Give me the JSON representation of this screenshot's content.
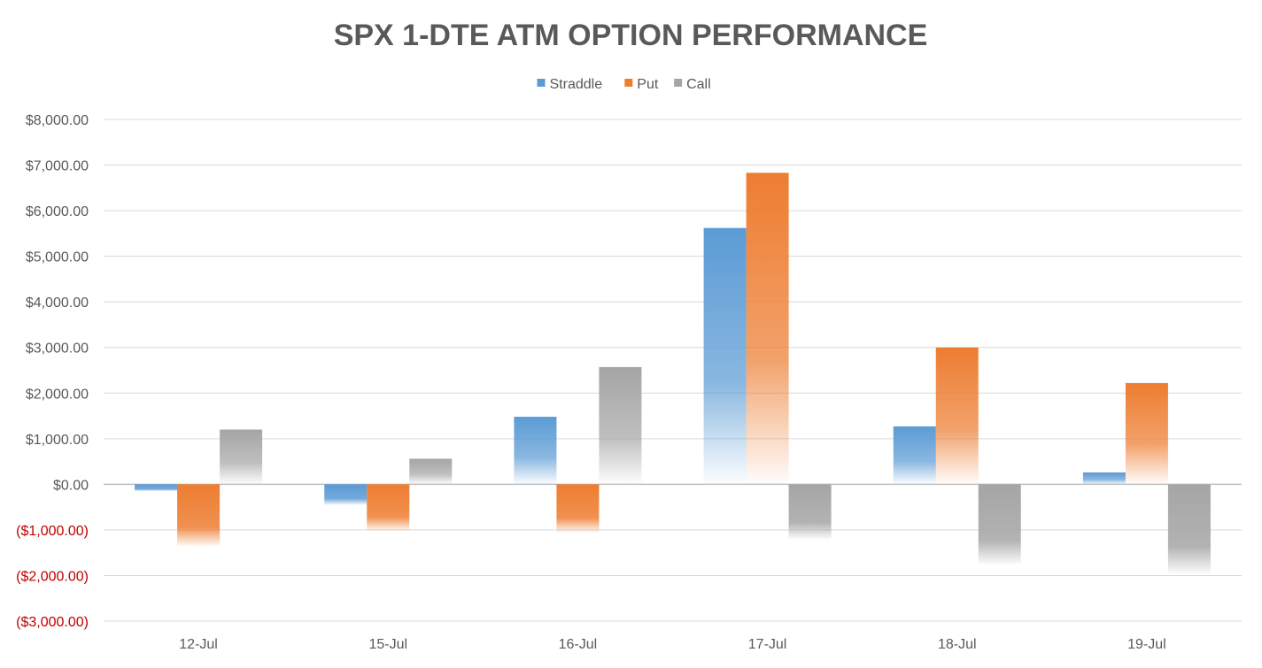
{
  "chart_data": {
    "type": "bar",
    "title": "SPX 1-DTE ATM OPTION PERFORMANCE",
    "xlabel": "",
    "ylabel": "",
    "categories": [
      "12-Jul",
      "15-Jul",
      "16-Jul",
      "17-Jul",
      "18-Jul",
      "19-Jul"
    ],
    "series": [
      {
        "name": "Straddle",
        "color": "#5B9BD5",
        "values": [
          -150,
          -450,
          1480,
          5620,
          1270,
          260
        ]
      },
      {
        "name": "Put",
        "color": "#ED7D31",
        "values": [
          -1350,
          -1020,
          -1050,
          6830,
          3000,
          2220
        ]
      },
      {
        "name": "Call",
        "color": "#A5A5A5",
        "values": [
          1200,
          560,
          2570,
          -1200,
          -1750,
          -1950
        ]
      }
    ],
    "ylim": [
      -3000,
      8000
    ],
    "yticks": [
      8000,
      7000,
      6000,
      5000,
      4000,
      3000,
      2000,
      1000,
      0,
      -1000,
      -2000,
      -3000
    ],
    "ytick_labels": [
      "$8,000.00",
      "$7,000.00",
      "$6,000.00",
      "$5,000.00",
      "$4,000.00",
      "$3,000.00",
      "$2,000.00",
      "$1,000.00",
      "$0.00",
      "($1,000.00)",
      "($2,000.00)",
      "($3,000.00)"
    ],
    "negative_label_color": "#C00000",
    "positive_label_color": "#595959",
    "grid": true,
    "legend": "top-center"
  }
}
